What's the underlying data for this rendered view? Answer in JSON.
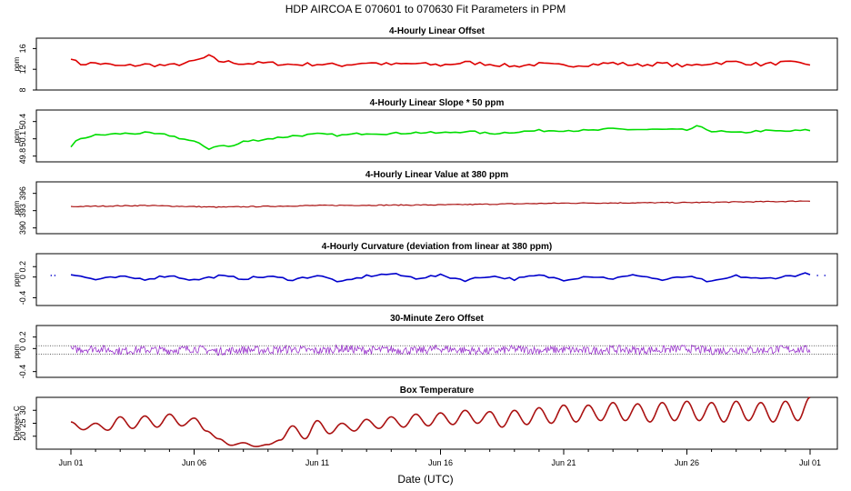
{
  "title": "HDP   AIRCOA E   070601 to 070630   Fit Parameters in PPM",
  "xlabel": "Date (UTC)",
  "x_tick_labels": [
    "Jun 01",
    "Jun 06",
    "Jun 11",
    "Jun 16",
    "Jun 21",
    "Jun 26",
    "Jul 01"
  ],
  "chart_data": [
    {
      "type": "line",
      "title": "4-Hourly Linear Offset",
      "ylabel": "ppm",
      "color": "#dd0000",
      "ylim": [
        8,
        18
      ],
      "y_ticks": [
        8,
        12,
        16
      ],
      "x": [
        1,
        1.3,
        2,
        3,
        4,
        5,
        5.8,
        6.3,
        6.6,
        7,
        8,
        9,
        10,
        11,
        12,
        13,
        14,
        15,
        16,
        17,
        18,
        19,
        20,
        21,
        22,
        23,
        24,
        25,
        26,
        27,
        28,
        29,
        30,
        31
      ],
      "values": [
        14.3,
        13.0,
        13.2,
        12.6,
        12.9,
        12.7,
        13.3,
        14.0,
        14.5,
        13.6,
        13.1,
        13.2,
        12.9,
        13.0,
        12.8,
        13.3,
        12.9,
        13.1,
        12.8,
        13.3,
        13.0,
        12.6,
        13.0,
        12.7,
        12.9,
        13.2,
        12.8,
        13.1,
        12.6,
        13.2,
        13.4,
        12.9,
        13.3,
        13.0
      ]
    },
    {
      "type": "line",
      "title": "4-Hourly Linear Slope * 50 ppm",
      "ylabel": "ppm",
      "color": "#00dd00",
      "ylim": [
        49.7,
        50.6
      ],
      "y_ticks": [
        49.8,
        50.1,
        50.4
      ],
      "x": [
        1,
        1.3,
        2,
        3,
        4,
        5,
        6,
        6.6,
        7,
        7.5,
        8,
        9,
        10,
        11,
        12,
        13,
        14,
        15,
        16,
        17,
        18,
        19,
        20,
        21,
        22,
        23,
        24,
        25,
        26,
        26.4,
        27,
        28,
        29,
        30,
        31
      ],
      "values": [
        49.95,
        50.1,
        50.16,
        50.19,
        50.2,
        50.16,
        50.05,
        49.93,
        49.99,
        49.96,
        50.05,
        50.1,
        50.15,
        50.18,
        50.16,
        50.2,
        50.19,
        50.21,
        50.2,
        50.23,
        50.19,
        50.22,
        50.24,
        50.25,
        50.24,
        50.27,
        50.26,
        50.26,
        50.25,
        50.31,
        50.24,
        50.2,
        50.24,
        50.23,
        50.25
      ]
    },
    {
      "type": "line",
      "title": "4-Hourly Linear Value at 380 ppm",
      "ylabel": "ppm",
      "color": "#aa1111",
      "ylim": [
        389,
        398
      ],
      "y_ticks": [
        390,
        393,
        396
      ],
      "x": [
        1,
        4,
        7,
        11,
        16,
        21,
        26,
        30,
        31
      ],
      "values": [
        393.7,
        393.9,
        393.6,
        393.9,
        394.0,
        394.3,
        394.4,
        394.6,
        394.7
      ]
    },
    {
      "type": "line",
      "title": "4-Hourly Curvature (deviation from linear at 380 ppm)",
      "ylabel": "ppm",
      "color": "#0000cc",
      "ylim": [
        -0.55,
        0.45
      ],
      "y_ticks": [
        -0.4,
        0.0,
        0.2
      ],
      "x": [
        1,
        2,
        3,
        4,
        5,
        6,
        7,
        8,
        9,
        10,
        11,
        12,
        13,
        14,
        15,
        16,
        17,
        18,
        19,
        20,
        21,
        22,
        23,
        24,
        25,
        26,
        27,
        28,
        29,
        30,
        31
      ],
      "values": [
        0.05,
        -0.05,
        0.0,
        -0.04,
        0.03,
        -0.06,
        0.02,
        -0.03,
        0.01,
        -0.05,
        0.03,
        -0.1,
        0.02,
        0.06,
        -0.02,
        0.03,
        -0.06,
        0.02,
        -0.04,
        0.03,
        -0.05,
        0.02,
        -0.03,
        0.04,
        -0.06,
        0.01,
        -0.1,
        0.02,
        -0.04,
        0.01,
        0.07
      ]
    },
    {
      "type": "line",
      "title": "30-Minute Zero Offset",
      "ylabel": "ppm",
      "color": "#9933cc",
      "ylim": [
        -0.5,
        0.4
      ],
      "y_ticks": [
        -0.4,
        0.0,
        0.2
      ],
      "reference_lines": [
        0.05,
        -0.1
      ],
      "x": [
        1,
        2,
        3,
        4,
        5,
        6,
        7,
        8,
        9,
        10,
        11,
        12,
        13,
        14,
        15,
        16,
        17,
        18,
        19,
        20,
        21,
        22,
        23,
        24,
        25,
        26,
        27,
        28,
        29,
        30,
        31
      ],
      "values": [
        -0.02,
        0.0,
        -0.04,
        -0.02,
        -0.03,
        0.0,
        -0.05,
        -0.02,
        -0.03,
        -0.01,
        -0.04,
        0.0,
        -0.03,
        -0.02,
        -0.04,
        0.0,
        -0.03,
        -0.05,
        -0.01,
        -0.03,
        -0.02,
        -0.04,
        -0.01,
        -0.03,
        -0.02,
        0.0,
        -0.04,
        -0.02,
        -0.03,
        -0.01,
        -0.02
      ]
    },
    {
      "type": "line",
      "title": "Box Temperature",
      "ylabel": "Degrees C",
      "color": "#aa1111",
      "ylim": [
        15,
        35
      ],
      "y_ticks": [
        20,
        25,
        30
      ],
      "note": "diurnal cycle",
      "x": [
        1.0,
        1.5,
        2.0,
        2.5,
        3.0,
        3.5,
        4.0,
        4.5,
        5.0,
        5.5,
        6.0,
        6.5,
        7.0,
        7.5,
        8.0,
        8.5,
        9.0,
        9.5,
        10.0,
        10.5,
        11.0,
        11.5,
        12.0,
        12.5,
        13.0,
        13.5,
        14.0,
        14.5,
        15.0,
        15.5,
        16.0,
        16.5,
        17.0,
        17.5,
        18.0,
        18.5,
        19.0,
        19.5,
        20.0,
        20.5,
        21.0,
        21.5,
        22.0,
        22.5,
        23.0,
        23.5,
        24.0,
        24.5,
        25.0,
        25.5,
        26.0,
        26.5,
        27.0,
        27.5,
        28.0,
        28.5,
        29.0,
        29.5,
        30.0,
        30.5,
        31.0
      ],
      "values": [
        25.5,
        22.5,
        25.0,
        22.3,
        27.5,
        23.0,
        27.8,
        23.5,
        28.5,
        24.0,
        27.0,
        22.0,
        19.0,
        16.5,
        17.5,
        16.0,
        16.8,
        18.5,
        24.0,
        19.0,
        26.0,
        21.0,
        25.0,
        22.0,
        26.5,
        23.0,
        27.5,
        23.5,
        28.5,
        24.0,
        29.0,
        24.5,
        30.0,
        25.0,
        29.5,
        23.5,
        30.0,
        24.5,
        31.0,
        25.0,
        32.0,
        25.5,
        32.0,
        26.0,
        33.0,
        26.0,
        32.5,
        25.5,
        33.0,
        26.0,
        33.5,
        26.0,
        33.0,
        25.5,
        33.5,
        26.0,
        33.0,
        25.5,
        33.5,
        26.0,
        35.0
      ]
    }
  ]
}
